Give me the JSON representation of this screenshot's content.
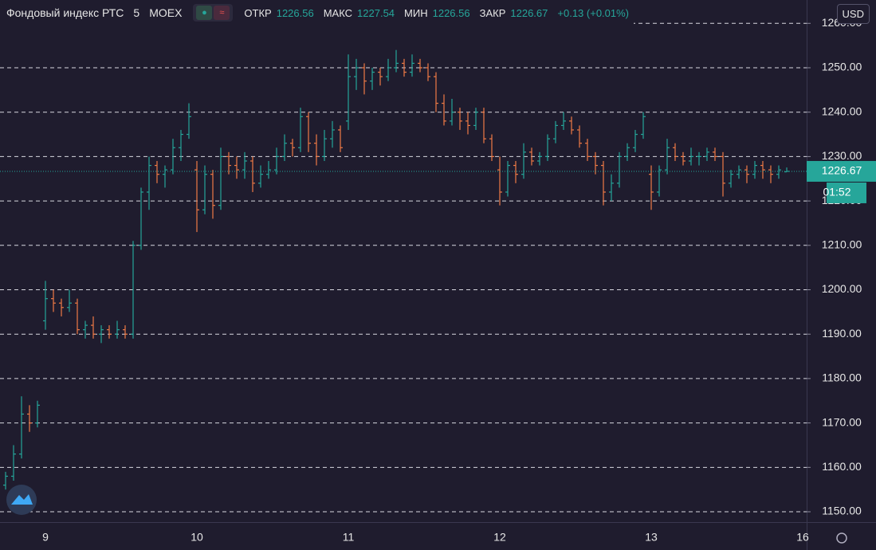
{
  "chart_data": {
    "type": "ohlc",
    "title": "Фондовый индекс РТС",
    "interval": "5",
    "exchange": "MOEX",
    "ohlc_labels": [
      "ОТКР",
      "МАКС",
      "МИН",
      "ЗАКР"
    ],
    "change_label": "+0.13 (+0.01%)",
    "currency": "USD",
    "countdown": "01:52",
    "up_color": "#26a69a",
    "down_color": "#f07a45",
    "grid": true,
    "ylim": [
      1147.67,
      1265.26
    ],
    "yticks": [
      {
        "value": 1150,
        "label": "1150.00"
      },
      {
        "value": 1160,
        "label": "1160.00"
      },
      {
        "value": 1170,
        "label": "1170.00"
      },
      {
        "value": 1180,
        "label": "1180.00"
      },
      {
        "value": 1190,
        "label": "1190.00"
      },
      {
        "value": 1200,
        "label": "1200.00"
      },
      {
        "value": 1210,
        "label": "1210.00"
      },
      {
        "value": 1220,
        "label": "1220.00"
      },
      {
        "value": 1230,
        "label": "1230.00"
      },
      {
        "value": 1240,
        "label": "1240.00"
      },
      {
        "value": 1250,
        "label": "1250.00"
      },
      {
        "value": 1260,
        "label": "1260.00"
      }
    ],
    "categories": [
      null,
      null,
      null,
      null,
      null,
      "9",
      null,
      null,
      null,
      null,
      null,
      null,
      null,
      null,
      null,
      null,
      null,
      null,
      null,
      null,
      null,
      null,
      null,
      null,
      "10",
      null,
      null,
      null,
      null,
      null,
      null,
      null,
      null,
      null,
      null,
      null,
      null,
      null,
      null,
      null,
      null,
      null,
      null,
      "11",
      null,
      null,
      null,
      null,
      null,
      null,
      null,
      null,
      null,
      null,
      null,
      null,
      null,
      null,
      null,
      null,
      null,
      null,
      "12",
      null,
      null,
      null,
      null,
      null,
      null,
      null,
      null,
      null,
      null,
      null,
      null,
      null,
      null,
      null,
      null,
      null,
      null,
      "13",
      null,
      null,
      null,
      null,
      null,
      null,
      null,
      null,
      null,
      null,
      null,
      null,
      null,
      null,
      null,
      null,
      null,
      null,
      "16"
    ],
    "ohlc": [
      [
        1156,
        1159,
        1155,
        1158
      ],
      [
        1158,
        1165,
        1157,
        1163
      ],
      [
        1163,
        1176,
        1162,
        1172
      ],
      [
        1172,
        1174,
        1168,
        1170
      ],
      [
        1170,
        1175,
        1169,
        1174
      ],
      [
        1193,
        1202,
        1191,
        1198
      ],
      [
        1198,
        1200,
        1195,
        1197
      ],
      [
        1197,
        1198,
        1194,
        1196
      ],
      [
        1196,
        1200,
        1195,
        1197
      ],
      [
        1197,
        1198,
        1190,
        1191
      ],
      [
        1191,
        1193,
        1189,
        1192
      ],
      [
        1192,
        1194,
        1189,
        1190
      ],
      [
        1190,
        1192,
        1188,
        1191
      ],
      [
        1191,
        1192,
        1189,
        1190
      ],
      [
        1190,
        1193,
        1189,
        1191
      ],
      [
        1191,
        1192,
        1189,
        1190
      ],
      [
        1190,
        1211,
        1189,
        1210
      ],
      [
        1210,
        1223,
        1209,
        1222
      ],
      [
        1222,
        1230,
        1218,
        1228
      ],
      [
        1228,
        1229,
        1224,
        1226
      ],
      [
        1226,
        1228,
        1223,
        1227
      ],
      [
        1227,
        1234,
        1226,
        1232
      ],
      [
        1232,
        1236,
        1229,
        1235
      ],
      [
        1235,
        1242,
        1234,
        1239
      ],
      [
        1227,
        1229,
        1213,
        1218
      ],
      [
        1218,
        1228,
        1217,
        1226
      ],
      [
        1226,
        1227,
        1216,
        1219
      ],
      [
        1219,
        1232,
        1218,
        1230
      ],
      [
        1230,
        1231,
        1226,
        1228
      ],
      [
        1228,
        1230,
        1225,
        1227
      ],
      [
        1227,
        1231,
        1225,
        1229
      ],
      [
        1229,
        1230,
        1222,
        1224
      ],
      [
        1224,
        1228,
        1223,
        1226
      ],
      [
        1226,
        1229,
        1225,
        1227
      ],
      [
        1227,
        1232,
        1226,
        1230
      ],
      [
        1230,
        1235,
        1229,
        1233
      ],
      [
        1233,
        1234,
        1230,
        1232
      ],
      [
        1232,
        1241,
        1231,
        1239
      ],
      [
        1239,
        1240,
        1231,
        1233
      ],
      [
        1233,
        1235,
        1228,
        1230
      ],
      [
        1230,
        1236,
        1229,
        1234
      ],
      [
        1234,
        1238,
        1232,
        1236
      ],
      [
        1236,
        1237,
        1231,
        1232
      ],
      [
        1238,
        1253,
        1236,
        1248
      ],
      [
        1248,
        1252,
        1245,
        1250
      ],
      [
        1250,
        1251,
        1244,
        1247
      ],
      [
        1247,
        1250,
        1245,
        1249
      ],
      [
        1249,
        1250,
        1246,
        1248
      ],
      [
        1248,
        1252,
        1247,
        1250
      ],
      [
        1250,
        1254,
        1249,
        1251
      ],
      [
        1251,
        1252,
        1248,
        1249
      ],
      [
        1249,
        1253,
        1248,
        1251
      ],
      [
        1251,
        1252,
        1249,
        1250
      ],
      [
        1250,
        1251,
        1247,
        1248
      ],
      [
        1248,
        1249,
        1240,
        1242
      ],
      [
        1242,
        1244,
        1237,
        1238
      ],
      [
        1238,
        1243,
        1237,
        1240
      ],
      [
        1240,
        1241,
        1236,
        1238
      ],
      [
        1238,
        1240,
        1235,
        1237
      ],
      [
        1237,
        1241,
        1236,
        1240
      ],
      [
        1240,
        1241,
        1233,
        1234
      ],
      [
        1234,
        1235,
        1229,
        1230
      ],
      [
        1227,
        1230,
        1219,
        1222
      ],
      [
        1222,
        1229,
        1221,
        1228
      ],
      [
        1228,
        1229,
        1224,
        1226
      ],
      [
        1226,
        1233,
        1225,
        1231
      ],
      [
        1231,
        1232,
        1228,
        1229
      ],
      [
        1229,
        1231,
        1228,
        1230
      ],
      [
        1230,
        1235,
        1229,
        1234
      ],
      [
        1234,
        1238,
        1233,
        1237
      ],
      [
        1237,
        1240,
        1236,
        1238
      ],
      [
        1238,
        1239,
        1235,
        1236
      ],
      [
        1236,
        1237,
        1232,
        1233
      ],
      [
        1233,
        1234,
        1229,
        1230
      ],
      [
        1230,
        1231,
        1226,
        1228
      ],
      [
        1228,
        1229,
        1219,
        1222
      ],
      [
        1222,
        1226,
        1220,
        1224
      ],
      [
        1224,
        1231,
        1223,
        1230
      ],
      [
        1230,
        1233,
        1229,
        1232
      ],
      [
        1232,
        1236,
        1231,
        1235
      ],
      [
        1235,
        1240,
        1234,
        1239
      ],
      [
        1226,
        1228,
        1218,
        1222
      ],
      [
        1222,
        1228,
        1221,
        1227
      ],
      [
        1227,
        1234,
        1226,
        1232
      ],
      [
        1232,
        1233,
        1229,
        1230
      ],
      [
        1230,
        1231,
        1228,
        1229
      ],
      [
        1229,
        1232,
        1228,
        1230
      ],
      [
        1230,
        1231,
        1228,
        1230
      ],
      [
        1230,
        1232,
        1229,
        1231
      ],
      [
        1231,
        1232,
        1229,
        1230
      ],
      [
        1230,
        1231,
        1221,
        1224
      ],
      [
        1224,
        1227,
        1223,
        1226
      ],
      [
        1226,
        1228,
        1225,
        1227
      ],
      [
        1227,
        1228,
        1224,
        1226
      ],
      [
        1226,
        1229,
        1225,
        1228
      ],
      [
        1228,
        1229,
        1225,
        1227
      ],
      [
        1227,
        1228,
        1224,
        1226
      ],
      [
        1226,
        1228,
        1225,
        1227
      ],
      [
        1226.56,
        1227.54,
        1226.56,
        1226.67
      ],
      null,
      null
    ]
  }
}
